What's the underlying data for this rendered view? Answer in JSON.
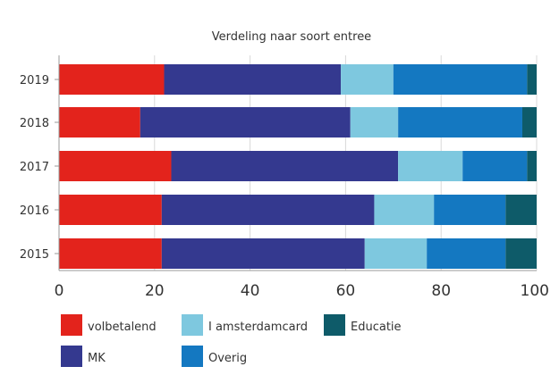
{
  "chart_data": {
    "type": "bar",
    "orientation": "horizontal",
    "stacked": true,
    "title": "Verdeling naar soort entree",
    "categories": [
      "2019",
      "2018",
      "2017",
      "2016",
      "2015"
    ],
    "series": [
      {
        "name": "volbetalend",
        "color": "#e3231c",
        "values": [
          22,
          17,
          23.5,
          21.5,
          21.5
        ]
      },
      {
        "name": "MK",
        "color": "#34398f",
        "values": [
          37,
          44,
          47.5,
          44.5,
          42.5
        ]
      },
      {
        "name": "I amsterdamcard",
        "color": "#7ec8df",
        "values": [
          11,
          10,
          13.5,
          12.5,
          13
        ]
      },
      {
        "name": "Overig",
        "color": "#1478c1",
        "values": [
          28,
          26,
          13.5,
          15,
          16.5
        ]
      },
      {
        "name": "Educatie",
        "color": "#0e5b69",
        "values": [
          2,
          3,
          2,
          6.5,
          6.5
        ]
      }
    ],
    "xlim": [
      0,
      100
    ],
    "xticks": [
      "0",
      "20",
      "40",
      "60",
      "80",
      "100"
    ],
    "grid": true,
    "legend_position": "bottom",
    "legend_order": [
      "volbetalend",
      "I amsterdamcard",
      "Educatie",
      "MK",
      "Overig"
    ]
  }
}
